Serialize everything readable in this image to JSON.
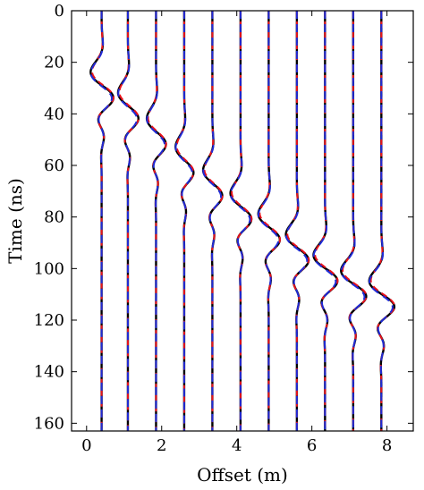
{
  "chart_data": {
    "type": "line",
    "title": "",
    "xlabel": "Offset (m)",
    "ylabel": "Time (ns)",
    "xlim": [
      -0.4,
      8.7
    ],
    "ylim": [
      163,
      0
    ],
    "y_inverted": true,
    "x_ticks": [
      0,
      2,
      4,
      6,
      8
    ],
    "y_ticks": [
      0,
      20,
      40,
      60,
      80,
      100,
      120,
      140,
      160
    ],
    "grid": false,
    "legend": "none",
    "trace_offsets": [
      0.4,
      1.1,
      1.85,
      2.6,
      3.35,
      4.1,
      4.85,
      5.6,
      6.35,
      7.1,
      7.85
    ],
    "wavelet_arrival_ns": [
      29,
      37,
      47,
      58,
      67,
      76,
      84,
      92,
      100,
      106,
      110
    ],
    "wavelet_amplitude_m": [
      0.38,
      0.34,
      0.32,
      0.3,
      0.32,
      0.35,
      0.36,
      0.38,
      0.4,
      0.42,
      0.42
    ],
    "series": [
      {
        "style": "solid",
        "color": "#000000"
      },
      {
        "style": "dashed",
        "color": "#e8121b"
      },
      {
        "style": "dashed",
        "color": "#1f2bd6"
      }
    ]
  }
}
